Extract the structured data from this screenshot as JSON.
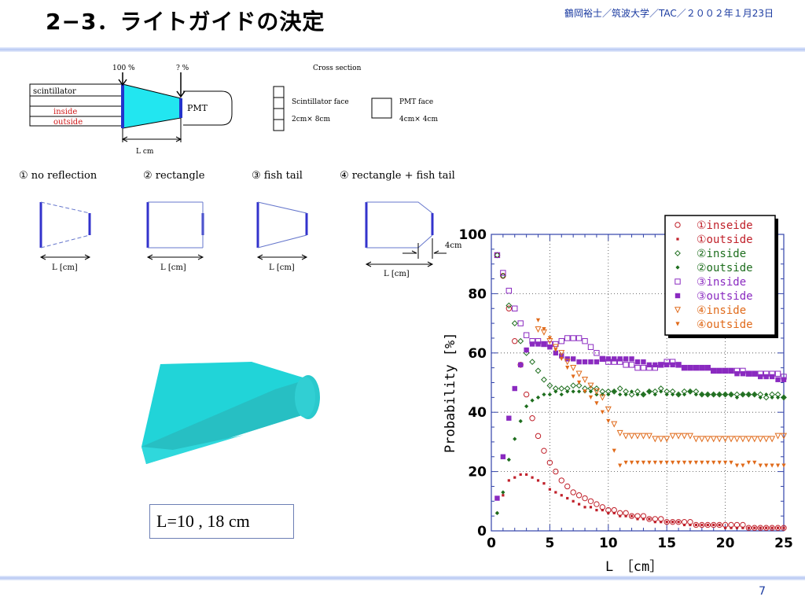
{
  "slide": {
    "title": "2−3．ライトガイドの決定",
    "header_meta": "鶴岡裕士／筑波大学／TAC／２００２年１月23日",
    "page_number": "7",
    "length_caption": "L=10 , 18 cm"
  },
  "top_diagram": {
    "label_100": "100 %",
    "label_q": "? %",
    "scintillator": "scintillator",
    "inside": "inside",
    "outside": "outside",
    "pmt": "PMT",
    "lcm": "L cm",
    "cross_section": "Cross section",
    "scint_face": "Scintillator  face",
    "scint_dim": "2cm× 8cm",
    "pmt_face": "PMT face",
    "pmt_dim": "4cm× 4cm"
  },
  "configs": [
    {
      "label": "① no reflection",
      "dim": "L [cm]"
    },
    {
      "label": "② rectangle",
      "dim": "L [cm]"
    },
    {
      "label": "③ fish tail",
      "dim": "L [cm]"
    },
    {
      "label": "④ rectangle + fish tail",
      "dim": "L [cm]",
      "extra": "4cm"
    }
  ],
  "chart_data": {
    "type": "scatter",
    "xlabel": "L　［cm］",
    "ylabel": "Probability  [%]",
    "xlim": [
      0,
      25
    ],
    "ylim": [
      0,
      100
    ],
    "xticks": [
      0,
      5,
      10,
      15,
      20,
      25
    ],
    "yticks": [
      0,
      20,
      40,
      60,
      80,
      100
    ],
    "grid": true,
    "legend_position": "top-right",
    "series": [
      {
        "name": "①inseide",
        "color": "#c0202a",
        "marker": "circle-open",
        "x": [
          0.5,
          1,
          1.5,
          2,
          2.5,
          3,
          3.5,
          4,
          4.5,
          5,
          5.5,
          6,
          6.5,
          7,
          7.5,
          8,
          8.5,
          9,
          9.5,
          10,
          10.5,
          11,
          11.5,
          12,
          12.5,
          13,
          13.5,
          14,
          14.5,
          15,
          15.5,
          16,
          16.5,
          17,
          17.5,
          18,
          18.5,
          19,
          19.5,
          20,
          20.5,
          21,
          21.5,
          22,
          22.5,
          23,
          23.5,
          24,
          24.5,
          25
        ],
        "y": [
          93,
          86,
          75,
          64,
          56,
          46,
          38,
          32,
          27,
          23,
          20,
          17,
          15,
          13,
          12,
          11,
          10,
          9,
          8,
          7,
          7,
          6,
          6,
          5,
          5,
          5,
          4,
          4,
          4,
          3,
          3,
          3,
          3,
          3,
          2,
          2,
          2,
          2,
          2,
          2,
          2,
          2,
          2,
          1,
          1,
          1,
          1,
          1,
          1,
          1
        ]
      },
      {
        "name": "①outside",
        "color": "#c0202a",
        "marker": "square-small",
        "x": [
          0.5,
          1,
          1.5,
          2,
          2.5,
          3,
          3.5,
          4,
          4.5,
          5,
          5.5,
          6,
          6.5,
          7,
          7.5,
          8,
          8.5,
          9,
          9.5,
          10,
          10.5,
          11,
          11.5,
          12,
          12.5,
          13,
          13.5,
          14,
          14.5,
          15,
          15.5,
          16,
          16.5,
          17,
          17.5,
          18,
          18.5,
          19,
          19.5,
          20,
          20.5,
          21,
          21.5,
          22,
          22.5,
          23,
          23.5,
          24,
          24.5,
          25
        ],
        "y": [
          6,
          12,
          17,
          18,
          19,
          19,
          18,
          17,
          16,
          14,
          13,
          12,
          11,
          10,
          9,
          8,
          8,
          7,
          7,
          6,
          6,
          5,
          5,
          5,
          4,
          4,
          4,
          3,
          3,
          3,
          3,
          3,
          2,
          2,
          2,
          2,
          2,
          2,
          2,
          1,
          1,
          1,
          1,
          1,
          1,
          1,
          1,
          1,
          1,
          1
        ]
      },
      {
        "name": "②inside",
        "color": "#1e6e1e",
        "marker": "diamond-open",
        "x": [
          0.5,
          1,
          1.5,
          2,
          2.5,
          3,
          3.5,
          4,
          4.5,
          5,
          5.5,
          6,
          6.5,
          7,
          7.5,
          8,
          8.5,
          9,
          9.5,
          10,
          10.5,
          11,
          11.5,
          12,
          12.5,
          13,
          13.5,
          14,
          14.5,
          15,
          15.5,
          16,
          16.5,
          17,
          17.5,
          18,
          18.5,
          19,
          19.5,
          20,
          20.5,
          21,
          21.5,
          22,
          22.5,
          23,
          23.5,
          24,
          24.5,
          25
        ],
        "y": [
          93,
          86,
          76,
          70,
          64,
          60,
          57,
          54,
          51,
          49,
          48,
          48,
          48,
          49,
          49,
          48,
          48,
          48,
          47,
          47,
          47,
          48,
          47,
          46,
          47,
          46,
          47,
          47,
          48,
          47,
          47,
          46,
          47,
          47,
          47,
          46,
          46,
          46,
          46,
          46,
          46,
          46,
          46,
          46,
          46,
          46,
          45,
          46,
          46,
          45
        ]
      },
      {
        "name": "②outside",
        "color": "#1e6e1e",
        "marker": "diamond-solid",
        "x": [
          0.5,
          1,
          1.5,
          2,
          2.5,
          3,
          3.5,
          4,
          4.5,
          5,
          5.5,
          6,
          6.5,
          7,
          7.5,
          8,
          8.5,
          9,
          9.5,
          10,
          10.5,
          11,
          11.5,
          12,
          12.5,
          13,
          13.5,
          14,
          14.5,
          15,
          15.5,
          16,
          16.5,
          17,
          17.5,
          18,
          18.5,
          19,
          19.5,
          20,
          20.5,
          21,
          21.5,
          22,
          22.5,
          23,
          23.5,
          24,
          24.5,
          25
        ],
        "y": [
          6,
          13,
          24,
          31,
          37,
          42,
          44,
          45,
          46,
          46,
          47,
          46,
          47,
          47,
          47,
          47,
          47,
          46,
          46,
          46,
          47,
          46,
          46,
          47,
          46,
          46,
          47,
          46,
          47,
          46,
          46,
          46,
          46,
          47,
          46,
          46,
          46,
          46,
          46,
          46,
          46,
          45,
          46,
          46,
          46,
          45,
          46,
          45,
          45,
          45
        ]
      },
      {
        "name": "③inside",
        "color": "#8a2ac0",
        "marker": "square-open",
        "x": [
          0.5,
          1,
          1.5,
          2,
          2.5,
          3,
          3.5,
          4,
          4.5,
          5,
          5.5,
          6,
          6.5,
          7,
          7.5,
          8,
          8.5,
          9,
          9.5,
          10,
          10.5,
          11,
          11.5,
          12,
          12.5,
          13,
          13.5,
          14,
          14.5,
          15,
          15.5,
          16,
          16.5,
          17,
          17.5,
          18,
          18.5,
          19,
          19.5,
          20,
          20.5,
          21,
          21.5,
          22,
          22.5,
          23,
          23.5,
          24,
          24.5,
          25
        ],
        "y": [
          93,
          87,
          81,
          75,
          70,
          66,
          64,
          64,
          63,
          63,
          63,
          64,
          65,
          65,
          65,
          64,
          62,
          60,
          58,
          57,
          57,
          57,
          56,
          56,
          55,
          55,
          55,
          55,
          56,
          57,
          57,
          56,
          55,
          55,
          55,
          55,
          55,
          54,
          54,
          54,
          54,
          54,
          54,
          53,
          53,
          53,
          53,
          53,
          53,
          52
        ]
      },
      {
        "name": "③outside",
        "color": "#8a2ac0",
        "marker": "square-solid",
        "x": [
          0.5,
          1,
          1.5,
          2,
          2.5,
          3,
          3.5,
          4,
          4.5,
          5,
          5.5,
          6,
          6.5,
          7,
          7.5,
          8,
          8.5,
          9,
          9.5,
          10,
          10.5,
          11,
          11.5,
          12,
          12.5,
          13,
          13.5,
          14,
          14.5,
          15,
          15.5,
          16,
          16.5,
          17,
          17.5,
          18,
          18.5,
          19,
          19.5,
          20,
          20.5,
          21,
          21.5,
          22,
          22.5,
          23,
          23.5,
          24,
          24.5,
          25
        ],
        "y": [
          11,
          25,
          38,
          48,
          56,
          61,
          63,
          63,
          63,
          62,
          60,
          59,
          58,
          58,
          57,
          57,
          57,
          57,
          58,
          58,
          58,
          58,
          58,
          58,
          57,
          57,
          56,
          56,
          56,
          56,
          56,
          56,
          55,
          55,
          55,
          55,
          55,
          54,
          54,
          54,
          54,
          53,
          53,
          53,
          53,
          52,
          52,
          52,
          51,
          51
        ]
      },
      {
        "name": "④inside",
        "color": "#e06a1a",
        "marker": "triangle-open",
        "x": [
          4,
          4.5,
          5,
          5.5,
          6,
          6.5,
          7,
          7.5,
          8,
          8.5,
          9,
          9.5,
          10,
          10.5,
          11,
          11.5,
          12,
          12.5,
          13,
          13.5,
          14,
          14.5,
          15,
          15.5,
          16,
          16.5,
          17,
          17.5,
          18,
          18.5,
          19,
          19.5,
          20,
          20.5,
          21,
          21.5,
          22,
          22.5,
          23,
          23.5,
          24,
          24.5,
          25
        ],
        "y": [
          68,
          67,
          64,
          62,
          60,
          57,
          55,
          53,
          51,
          49,
          47,
          45,
          41,
          36,
          33,
          32,
          32,
          32,
          32,
          32,
          31,
          31,
          31,
          32,
          32,
          32,
          32,
          31,
          31,
          31,
          31,
          31,
          31,
          31,
          31,
          31,
          31,
          31,
          31,
          31,
          31,
          32,
          32
        ]
      },
      {
        "name": "④outside",
        "color": "#e06a1a",
        "marker": "triangle-solid",
        "x": [
          4,
          4.5,
          5,
          5.5,
          6,
          6.5,
          7,
          7.5,
          8,
          8.5,
          9,
          9.5,
          10,
          10.5,
          11,
          11.5,
          12,
          12.5,
          13,
          13.5,
          14,
          14.5,
          15,
          15.5,
          16,
          16.5,
          17,
          17.5,
          18,
          18.5,
          19,
          19.5,
          20,
          20.5,
          21,
          21.5,
          22,
          22.5,
          23,
          23.5,
          24,
          24.5,
          25
        ],
        "y": [
          71,
          68,
          65,
          61,
          58,
          55,
          52,
          50,
          47,
          45,
          43,
          40,
          37,
          27,
          22,
          23,
          23,
          23,
          23,
          23,
          23,
          23,
          23,
          23,
          23,
          23,
          23,
          23,
          23,
          23,
          23,
          23,
          23,
          23,
          22,
          22,
          23,
          23,
          22,
          22,
          22,
          22,
          22
        ]
      }
    ]
  }
}
